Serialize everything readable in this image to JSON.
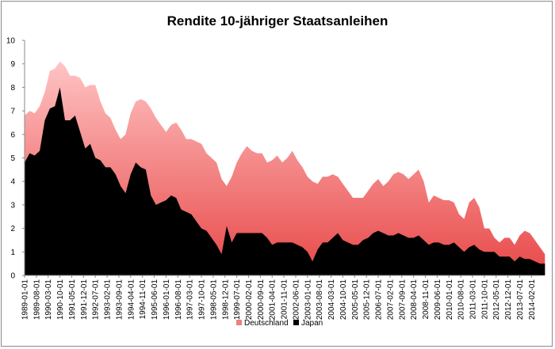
{
  "chart_data": {
    "type": "area",
    "title": "Rendite 10-jähriger Staatsanleihen",
    "xlabel": "",
    "ylabel": "",
    "ylim": [
      0,
      10
    ],
    "yticks": [
      0,
      1,
      2,
      3,
      4,
      5,
      6,
      7,
      8,
      9,
      10
    ],
    "grid": false,
    "legend_position": "bottom",
    "x_tick_labels": [
      "1989-01-01",
      "1989-08-01",
      "1990-03-01",
      "1990-10-01",
      "1991-05-01",
      "1991-12-01",
      "1992-07-01",
      "1993-02-01",
      "1993-09-01",
      "1994-04-01",
      "1994-11-01",
      "1995-06-01",
      "1996-01-01",
      "1996-08-01",
      "1997-03-01",
      "1997-10-01",
      "1998-05-01",
      "1998-12-01",
      "1999-07-01",
      "2000-02-01",
      "2000-09-01",
      "2001-04-01",
      "2001-11-01",
      "2002-06-01",
      "2003-01-01",
      "2003-08-01",
      "2004-03-01",
      "2004-10-01",
      "2005-05-01",
      "2005-12-01",
      "2006-07-01",
      "2007-02-01",
      "2007-09-01",
      "2008-04-01",
      "2008-11-01",
      "2009-06-01",
      "2010-01-01",
      "2010-08-01",
      "2011-03-01",
      "2011-10-01",
      "2012-05-01",
      "2012-12-01",
      "2013-07-01",
      "2014-02-01"
    ],
    "x": [
      "1989-01",
      "1989-04",
      "1989-07",
      "1989-10",
      "1990-01",
      "1990-04",
      "1990-07",
      "1990-10",
      "1991-01",
      "1991-04",
      "1991-07",
      "1991-10",
      "1992-01",
      "1992-04",
      "1992-07",
      "1992-10",
      "1993-01",
      "1993-04",
      "1993-07",
      "1993-10",
      "1994-01",
      "1994-04",
      "1994-07",
      "1994-10",
      "1995-01",
      "1995-04",
      "1995-07",
      "1995-10",
      "1996-01",
      "1996-04",
      "1996-07",
      "1996-10",
      "1997-01",
      "1997-04",
      "1997-07",
      "1997-10",
      "1998-01",
      "1998-04",
      "1998-07",
      "1998-10",
      "1999-01",
      "1999-04",
      "1999-07",
      "1999-10",
      "2000-01",
      "2000-04",
      "2000-07",
      "2000-10",
      "2001-01",
      "2001-04",
      "2001-07",
      "2001-10",
      "2002-01",
      "2002-04",
      "2002-07",
      "2002-10",
      "2003-01",
      "2003-04",
      "2003-07",
      "2003-10",
      "2004-01",
      "2004-04",
      "2004-07",
      "2004-10",
      "2005-01",
      "2005-04",
      "2005-07",
      "2005-10",
      "2006-01",
      "2006-04",
      "2006-07",
      "2006-10",
      "2007-01",
      "2007-04",
      "2007-07",
      "2007-10",
      "2008-01",
      "2008-04",
      "2008-07",
      "2008-10",
      "2009-01",
      "2009-04",
      "2009-07",
      "2009-10",
      "2010-01",
      "2010-04",
      "2010-07",
      "2010-10",
      "2011-01",
      "2011-04",
      "2011-07",
      "2011-10",
      "2012-01",
      "2012-04",
      "2012-07",
      "2012-10",
      "2013-01",
      "2013-04",
      "2013-07",
      "2013-10",
      "2014-01",
      "2014-04",
      "2014-07",
      "2014-10"
    ],
    "series": [
      {
        "name": "Deutschland",
        "color": "#e84848",
        "values": [
          6.8,
          7.0,
          6.9,
          7.2,
          7.8,
          8.7,
          8.8,
          9.1,
          8.9,
          8.5,
          8.5,
          8.4,
          8.0,
          8.1,
          8.1,
          7.4,
          6.9,
          6.7,
          6.2,
          5.8,
          6.0,
          6.9,
          7.4,
          7.5,
          7.4,
          7.1,
          6.7,
          6.4,
          6.1,
          6.4,
          6.5,
          6.2,
          5.8,
          5.8,
          5.7,
          5.6,
          5.2,
          5.0,
          4.8,
          4.1,
          3.8,
          4.2,
          4.8,
          5.2,
          5.5,
          5.3,
          5.2,
          5.2,
          4.8,
          4.9,
          5.1,
          4.8,
          5.0,
          5.3,
          4.9,
          4.6,
          4.2,
          4.0,
          3.9,
          4.2,
          4.2,
          4.3,
          4.2,
          3.9,
          3.6,
          3.3,
          3.3,
          3.3,
          3.6,
          3.9,
          4.1,
          3.8,
          4.0,
          4.3,
          4.4,
          4.3,
          4.1,
          4.3,
          4.5,
          4.0,
          3.1,
          3.4,
          3.3,
          3.2,
          3.2,
          3.1,
          2.6,
          2.4,
          3.1,
          3.3,
          2.9,
          2.0,
          2.0,
          1.6,
          1.4,
          1.6,
          1.6,
          1.3,
          1.7,
          1.9,
          1.8,
          1.5,
          1.2,
          0.9
        ]
      },
      {
        "name": "Japan",
        "color": "#000000",
        "values": [
          4.8,
          5.2,
          5.1,
          5.3,
          6.6,
          7.1,
          7.2,
          8.0,
          6.6,
          6.6,
          6.8,
          6.1,
          5.4,
          5.6,
          5.0,
          4.9,
          4.6,
          4.6,
          4.3,
          3.8,
          3.5,
          4.3,
          4.8,
          4.6,
          4.5,
          3.4,
          3.0,
          3.1,
          3.2,
          3.4,
          3.3,
          2.8,
          2.7,
          2.6,
          2.3,
          2.0,
          1.9,
          1.6,
          1.3,
          0.9,
          2.1,
          1.4,
          1.8,
          1.8,
          1.8,
          1.8,
          1.8,
          1.8,
          1.6,
          1.3,
          1.4,
          1.4,
          1.4,
          1.4,
          1.3,
          1.2,
          1.0,
          0.6,
          1.1,
          1.4,
          1.4,
          1.6,
          1.8,
          1.5,
          1.4,
          1.3,
          1.3,
          1.5,
          1.6,
          1.8,
          1.9,
          1.8,
          1.7,
          1.7,
          1.8,
          1.7,
          1.6,
          1.6,
          1.7,
          1.5,
          1.3,
          1.4,
          1.4,
          1.3,
          1.3,
          1.4,
          1.2,
          1.0,
          1.2,
          1.3,
          1.1,
          1.0,
          1.0,
          1.0,
          0.8,
          0.8,
          0.8,
          0.6,
          0.8,
          0.7,
          0.7,
          0.6,
          0.5,
          0.5
        ]
      }
    ]
  }
}
